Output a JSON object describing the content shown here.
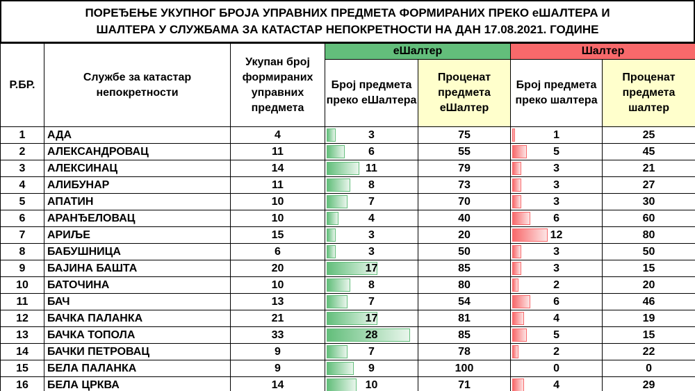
{
  "title": {
    "line1": "ПОРЕЂЕЊЕ УКУПНОГ БРОЈА УПРАВНИХ ПРЕДМЕТА ФОРМИРАНИХ ПРЕКО еШАЛТЕРА И",
    "line2": "ШАЛТЕРА У СЛУЖБАМА ЗА КАТАСТАР НЕПОКРЕТНОСТИ НА ДАН 17.08.2021. ГОДИНЕ"
  },
  "headers": {
    "rb": "Р.БР.",
    "office": "Службе за катастар непокретности",
    "total": "Укупан број формираних управних предмета",
    "eshalter_group": "еШалтер",
    "eshalter_count": "Број предмета преко еШалтера",
    "eshalter_percent": "Проценат предмета еШалтер",
    "shalter_group": "Шалтер",
    "shalter_count": "Број предмета преко шалтера",
    "shalter_percent": "Проценат предмета шалтер"
  },
  "colors": {
    "eshalter": "#63be7b",
    "shalter": "#f8696b",
    "header_highlight": "#ffffcc"
  },
  "bar_scale_max": 28,
  "rows": [
    {
      "rb": "1",
      "name": "АДА",
      "total": "4",
      "e_count": "3",
      "e_pct": "75",
      "s_count": "1",
      "s_pct": "25"
    },
    {
      "rb": "2",
      "name": "АЛЕКСАНДРОВАЦ",
      "total": "11",
      "e_count": "6",
      "e_pct": "55",
      "s_count": "5",
      "s_pct": "45"
    },
    {
      "rb": "3",
      "name": "АЛЕКСИНАЦ",
      "total": "14",
      "e_count": "11",
      "e_pct": "79",
      "s_count": "3",
      "s_pct": "21"
    },
    {
      "rb": "4",
      "name": "АЛИБУНАР",
      "total": "11",
      "e_count": "8",
      "e_pct": "73",
      "s_count": "3",
      "s_pct": "27"
    },
    {
      "rb": "5",
      "name": "АПАТИН",
      "total": "10",
      "e_count": "7",
      "e_pct": "70",
      "s_count": "3",
      "s_pct": "30"
    },
    {
      "rb": "6",
      "name": "АРАНЂЕЛОВАЦ",
      "total": "10",
      "e_count": "4",
      "e_pct": "40",
      "s_count": "6",
      "s_pct": "60"
    },
    {
      "rb": "7",
      "name": "АРИЉЕ",
      "total": "15",
      "e_count": "3",
      "e_pct": "20",
      "s_count": "12",
      "s_pct": "80"
    },
    {
      "rb": "8",
      "name": "БАБУШНИЦА",
      "total": "6",
      "e_count": "3",
      "e_pct": "50",
      "s_count": "3",
      "s_pct": "50"
    },
    {
      "rb": "9",
      "name": "БАЈИНА БАШТА",
      "total": "20",
      "e_count": "17",
      "e_pct": "85",
      "s_count": "3",
      "s_pct": "15"
    },
    {
      "rb": "10",
      "name": "БАТОЧИНА",
      "total": "10",
      "e_count": "8",
      "e_pct": "80",
      "s_count": "2",
      "s_pct": "20"
    },
    {
      "rb": "11",
      "name": "БАЧ",
      "total": "13",
      "e_count": "7",
      "e_pct": "54",
      "s_count": "6",
      "s_pct": "46"
    },
    {
      "rb": "12",
      "name": "БАЧКА ПАЛАНКА",
      "total": "21",
      "e_count": "17",
      "e_pct": "81",
      "s_count": "4",
      "s_pct": "19"
    },
    {
      "rb": "13",
      "name": "БАЧКА ТОПОЛА",
      "total": "33",
      "e_count": "28",
      "e_pct": "85",
      "s_count": "5",
      "s_pct": "15"
    },
    {
      "rb": "14",
      "name": "БАЧКИ ПЕТРОВАЦ",
      "total": "9",
      "e_count": "7",
      "e_pct": "78",
      "s_count": "2",
      "s_pct": "22"
    },
    {
      "rb": "15",
      "name": "БЕЛА ПАЛАНКА",
      "total": "9",
      "e_count": "9",
      "e_pct": "100",
      "s_count": "0",
      "s_pct": "0"
    },
    {
      "rb": "16",
      "name": "БЕЛА ЦРКВА",
      "total": "14",
      "e_count": "10",
      "e_pct": "71",
      "s_count": "4",
      "s_pct": "29"
    }
  ]
}
